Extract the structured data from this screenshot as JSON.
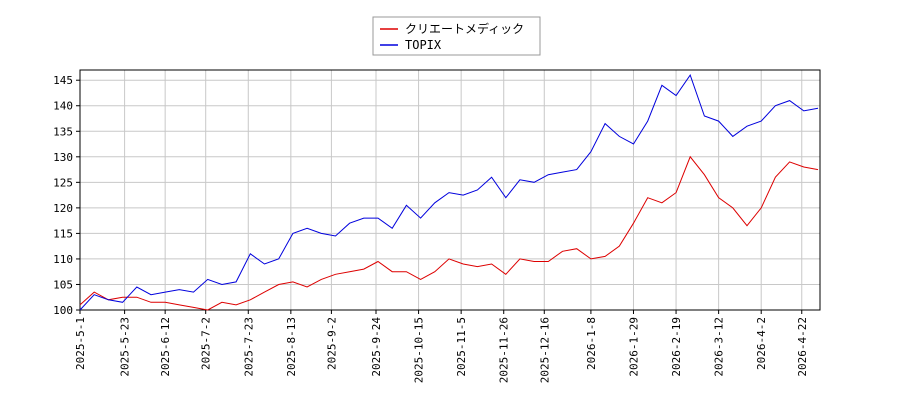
{
  "chart_data": {
    "type": "line",
    "x": [
      "2025-05-01",
      "2025-05-08",
      "2025-05-15",
      "2025-05-22",
      "2025-05-29",
      "2025-06-05",
      "2025-06-12",
      "2025-06-19",
      "2025-06-26",
      "2025-07-03",
      "2025-07-10",
      "2025-07-17",
      "2025-07-24",
      "2025-07-31",
      "2025-08-07",
      "2025-08-14",
      "2025-08-21",
      "2025-08-28",
      "2025-09-04",
      "2025-09-11",
      "2025-09-18",
      "2025-09-25",
      "2025-10-02",
      "2025-10-09",
      "2025-10-16",
      "2025-10-23",
      "2025-10-30",
      "2025-11-06",
      "2025-11-13",
      "2025-11-20",
      "2025-11-27",
      "2025-12-04",
      "2025-12-11",
      "2025-12-18",
      "2025-12-25",
      "2026-01-01",
      "2026-01-08",
      "2026-01-15",
      "2026-01-22",
      "2026-01-29",
      "2026-02-05",
      "2026-02-12",
      "2026-02-19",
      "2026-02-26",
      "2026-03-05",
      "2026-03-12",
      "2026-03-19",
      "2026-03-26",
      "2026-04-02",
      "2026-04-09",
      "2026-04-16",
      "2026-04-23",
      "2026-04-30"
    ],
    "series": [
      {
        "name": "クリエートメディック",
        "color": "#dd0000",
        "values": [
          101,
          103.5,
          102,
          102.5,
          102.5,
          101.5,
          101.5,
          101,
          100.5,
          100,
          101.5,
          101,
          102,
          103.5,
          105,
          105.5,
          104.5,
          106,
          107,
          107.5,
          108,
          109.5,
          107.5,
          107.5,
          106,
          107.5,
          110,
          109,
          108.5,
          109,
          107,
          110,
          109.5,
          109.5,
          111.5,
          112,
          110,
          110.5,
          112.5,
          117,
          122,
          121,
          123,
          130,
          126.5,
          122,
          120,
          116.5,
          120,
          126,
          129,
          128,
          127.5
        ]
      },
      {
        "name": "TOPIX",
        "color": "#0000dd",
        "values": [
          100,
          103,
          102,
          101.5,
          104.5,
          103,
          103.5,
          104,
          103.5,
          106,
          105,
          105.5,
          111,
          109,
          110,
          115,
          116,
          115,
          114.5,
          117,
          118,
          118,
          116,
          120.5,
          118,
          121,
          123,
          122.5,
          123.5,
          126,
          122,
          125.5,
          125,
          126.5,
          127,
          127.5,
          131,
          136.5,
          134,
          132.5,
          137,
          144,
          142,
          146,
          138,
          137,
          134,
          136,
          137,
          140,
          141,
          139,
          139.5
        ]
      }
    ],
    "xlim": [
      "2025-05-01",
      "2026-05-01"
    ],
    "xticks": [
      "2025-5-1",
      "2025-5-23",
      "2025-6-12",
      "2025-7-2",
      "2025-7-23",
      "2025-8-13",
      "2025-9-2",
      "2025-9-24",
      "2025-10-15",
      "2025-11-5",
      "2025-11-26",
      "2025-12-16",
      "2026-1-8",
      "2026-1-29",
      "2026-2-19",
      "2026-3-12",
      "2026-4-2",
      "2026-4-22"
    ],
    "ylim": [
      100,
      147
    ],
    "yticks": [
      100,
      105,
      110,
      115,
      120,
      125,
      130,
      135,
      140,
      145
    ],
    "grid": true,
    "legend": "top"
  }
}
